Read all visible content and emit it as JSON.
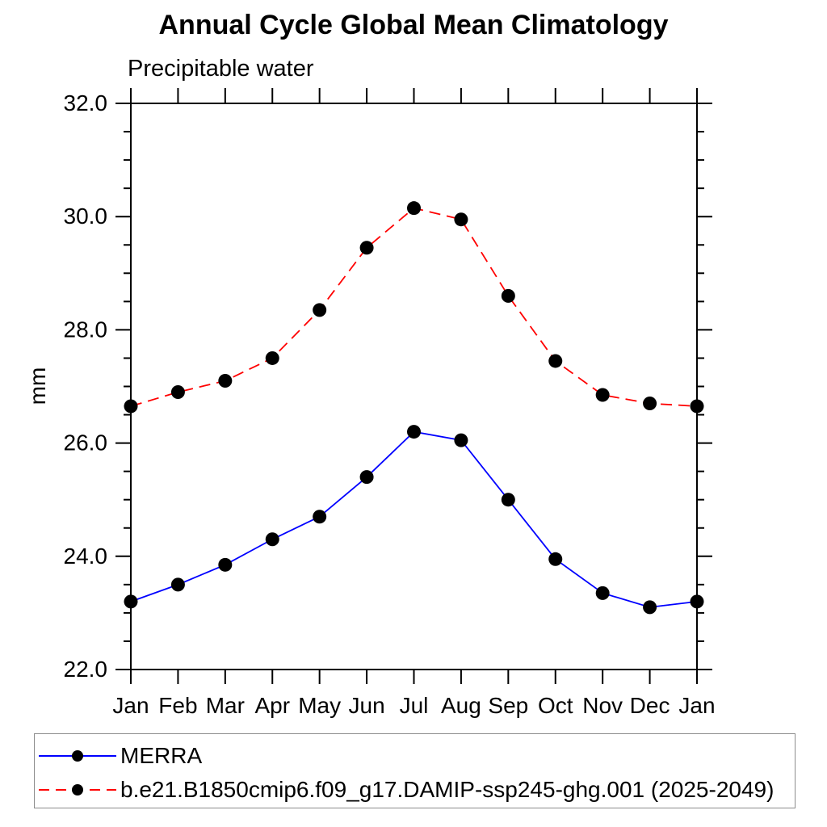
{
  "page": {
    "background": "#ffffff"
  },
  "chart_data": {
    "type": "line",
    "title": "Annual Cycle Global Mean Climatology",
    "subtitle": "Precipitable water",
    "ylabel": "mm",
    "xlabel": "",
    "x_categories": [
      "Jan",
      "Feb",
      "Mar",
      "Apr",
      "May",
      "Jun",
      "Jul",
      "Aug",
      "Sep",
      "Oct",
      "Nov",
      "Dec",
      "Jan"
    ],
    "ylim": [
      22.0,
      32.0
    ],
    "ytick_values": [
      22,
      24,
      26,
      28,
      30,
      32
    ],
    "ytick_labels": [
      "22.0",
      "24.0",
      "26.0",
      "28.0",
      "30.0",
      "32.0"
    ],
    "ytick_minor_step": 0.5,
    "grid": false,
    "legend_position": "bottom-left",
    "axis_color": "#000000",
    "legend_border_color": "#8c8c8c",
    "series": [
      {
        "name": "MERRA",
        "line_color": "#0000ff",
        "line_style": "solid",
        "marker": "filled-circle",
        "marker_color": "#000000",
        "values": [
          23.2,
          23.5,
          23.85,
          24.3,
          24.7,
          25.4,
          26.2,
          26.05,
          25.0,
          23.95,
          23.35,
          23.1,
          23.2
        ]
      },
      {
        "name": "b.e21.B1850cmip6.f09_g17.DAMIP-ssp245-ghg.001 (2025-2049)",
        "line_color": "#ff0000",
        "line_style": "dashed",
        "marker": "filled-circle",
        "marker_color": "#000000",
        "values": [
          26.65,
          26.9,
          27.1,
          27.5,
          28.35,
          29.45,
          30.15,
          29.95,
          28.6,
          27.45,
          26.85,
          26.7,
          26.65
        ]
      }
    ]
  }
}
